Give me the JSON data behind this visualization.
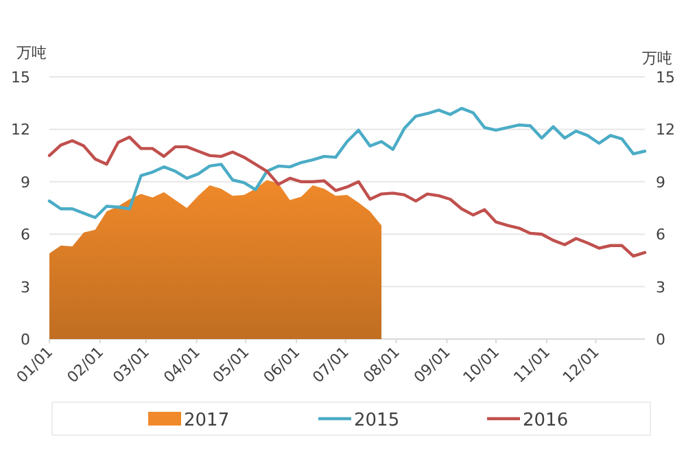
{
  "chart_data": {
    "type": "line",
    "ylabel": "万吨",
    "y2label": "万吨",
    "x": [
      "--01-01",
      "--01-08",
      "--01-15",
      "--01-22",
      "--01-29",
      "--02-05",
      "--02-12",
      "--02-19",
      "--02-26",
      "--03-05",
      "--03-12",
      "--03-19",
      "--03-26",
      "--04-02",
      "--04-09",
      "--04-16",
      "--04-23",
      "--04-30",
      "--05-07",
      "--05-14",
      "--05-21",
      "--05-28",
      "--06-04",
      "--06-11",
      "--06-18",
      "--06-25",
      "--07-02",
      "--07-09",
      "--07-16",
      "--07-23",
      "--07-30",
      "--08-06",
      "--08-13",
      "--08-20",
      "--08-27",
      "--09-03",
      "--09-10",
      "--09-17",
      "--09-24",
      "--10-01",
      "--10-08",
      "--10-15",
      "--10-22",
      "--10-29",
      "--11-05",
      "--11-12",
      "--11-19",
      "--11-26",
      "--12-03",
      "--12-10",
      "--12-17",
      "--12-24",
      "--12-31"
    ],
    "series": [
      {
        "name": "2017",
        "type": "area",
        "color": "#f0892a",
        "x": [
          "--01-01",
          "--01-08",
          "--01-15",
          "--01-22",
          "--01-29",
          "--02-05",
          "--02-12",
          "--02-19",
          "--02-26",
          "--03-05",
          "--03-12",
          "--03-19",
          "--03-26",
          "--04-02",
          "--04-09",
          "--04-16",
          "--04-23",
          "--04-30",
          "--05-07",
          "--05-14",
          "--05-21",
          "--05-28",
          "--06-04",
          "--06-11",
          "--06-18",
          "--06-25",
          "--07-02",
          "--07-09",
          "--07-16",
          "--07-23"
        ],
        "values": [
          4.9,
          5.35,
          5.3,
          6.1,
          6.25,
          7.3,
          7.6,
          8.0,
          8.3,
          8.1,
          8.4,
          7.95,
          7.5,
          8.2,
          8.8,
          8.6,
          8.2,
          8.25,
          8.6,
          9.1,
          8.9,
          7.95,
          8.15,
          8.8,
          8.6,
          8.2,
          8.25,
          7.8,
          7.3,
          6.5
        ]
      },
      {
        "name": "2015",
        "color": "#4bacc6",
        "values": [
          7.9,
          7.45,
          7.45,
          7.2,
          6.95,
          7.6,
          7.55,
          7.45,
          9.35,
          9.55,
          9.85,
          9.6,
          9.2,
          9.45,
          9.9,
          10.0,
          9.1,
          8.95,
          8.55,
          9.6,
          9.9,
          9.85,
          10.1,
          10.25,
          10.45,
          10.4,
          11.3,
          11.95,
          11.05,
          11.3,
          10.85,
          12.05,
          12.75,
          12.9,
          13.1,
          12.85,
          13.2,
          12.95,
          12.1,
          11.95,
          12.1,
          12.25,
          12.2,
          11.5,
          12.15,
          11.5,
          11.9,
          11.65,
          11.2,
          11.65,
          11.45,
          10.6,
          10.75
        ]
      },
      {
        "name": "2016",
        "color": "#c0504d",
        "values": [
          10.5,
          11.1,
          11.35,
          11.05,
          10.3,
          10.0,
          11.25,
          11.55,
          10.9,
          10.9,
          10.45,
          11.0,
          11.0,
          10.75,
          10.5,
          10.45,
          10.7,
          10.4,
          10.0,
          9.6,
          8.85,
          9.2,
          9.0,
          9.0,
          9.05,
          8.5,
          8.7,
          9.0,
          8.0,
          8.3,
          8.35,
          8.25,
          7.9,
          8.3,
          8.2,
          8.0,
          7.45,
          7.1,
          7.4,
          6.7,
          6.5,
          6.35,
          6.05,
          6.0,
          5.65,
          5.4,
          5.75,
          5.5,
          5.2,
          5.35,
          5.35,
          4.75,
          4.95
        ]
      }
    ],
    "xlim": [
      "--01-01",
      "--12-31"
    ],
    "xticks": [
      {
        "value": "--01-01",
        "label": "01/01"
      },
      {
        "value": "--02-01",
        "label": "02/01"
      },
      {
        "value": "--03-01",
        "label": "03/01"
      },
      {
        "value": "--04-01",
        "label": "04/01"
      },
      {
        "value": "--05-01",
        "label": "05/01"
      },
      {
        "value": "--06-01",
        "label": "06/01"
      },
      {
        "value": "--07-01",
        "label": "07/01"
      },
      {
        "value": "--08-01",
        "label": "08/01"
      },
      {
        "value": "--09-01",
        "label": "09/01"
      },
      {
        "value": "--10-01",
        "label": "10/01"
      },
      {
        "value": "--11-01",
        "label": "11/01"
      },
      {
        "value": "--12-01",
        "label": "12/01"
      }
    ],
    "ylim": [
      0,
      15
    ],
    "yticks": [
      0,
      3,
      6,
      9,
      12,
      15
    ],
    "y2lim": [
      0,
      15
    ],
    "y2ticks": [
      0,
      3,
      6,
      9,
      12,
      15
    ],
    "grid": "y",
    "legend": "bottom",
    "marker": "none",
    "line_style": "solid"
  }
}
